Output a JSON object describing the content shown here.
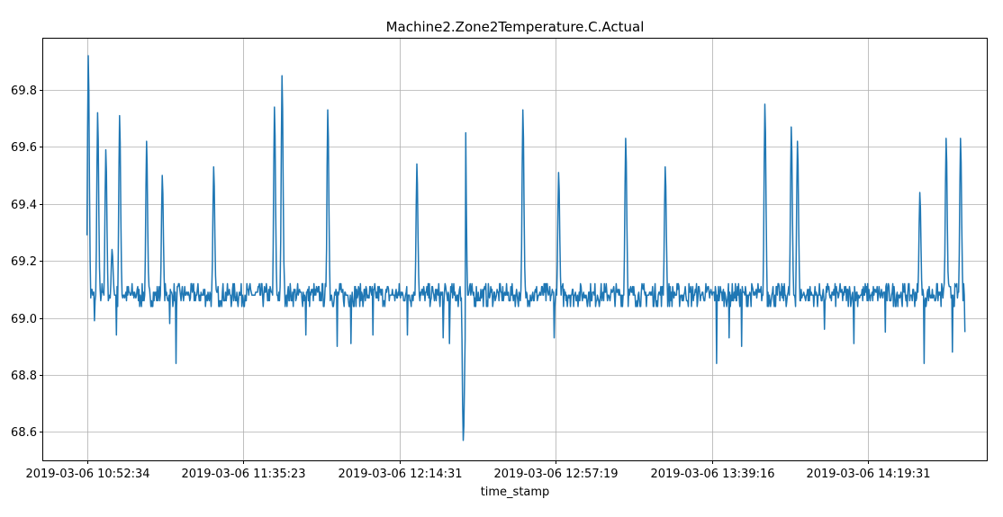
{
  "chart_data": {
    "type": "line",
    "title": "Machine2.Zone2Temperature.C.Actual",
    "xlabel": "time_stamp",
    "ylabel": "",
    "x_tick_labels": [
      "2019-03-06 10:52:34",
      "2019-03-06 11:35:23",
      "2019-03-06 12:14:31",
      "2019-03-06 12:57:19",
      "2019-03-06 13:39:16",
      "2019-03-06 14:19:31"
    ],
    "y_ticks": [
      68.6,
      68.8,
      69.0,
      69.2,
      69.4,
      69.6,
      69.8
    ],
    "ylim": [
      68.5,
      69.98
    ],
    "xlim": [
      -0.28,
      5.76
    ],
    "grid": true,
    "color": "#1f77b4",
    "series_note_baseline": 69.08,
    "spikes": [
      {
        "x": 0.01,
        "y": 69.92
      },
      {
        "x": 0.07,
        "y": 69.72
      },
      {
        "x": 0.12,
        "y": 69.59
      },
      {
        "x": 0.16,
        "y": 69.24
      },
      {
        "x": 0.21,
        "y": 69.71
      },
      {
        "x": 0.38,
        "y": 69.62
      },
      {
        "x": 0.48,
        "y": 69.5
      },
      {
        "x": 0.81,
        "y": 69.53
      },
      {
        "x": 1.2,
        "y": 69.74
      },
      {
        "x": 1.25,
        "y": 69.85
      },
      {
        "x": 1.54,
        "y": 69.73
      },
      {
        "x": 2.11,
        "y": 69.54
      },
      {
        "x": 2.42,
        "y": 69.75
      },
      {
        "x": 2.79,
        "y": 69.73
      },
      {
        "x": 3.02,
        "y": 69.51
      },
      {
        "x": 3.45,
        "y": 69.63
      },
      {
        "x": 3.7,
        "y": 69.53
      },
      {
        "x": 4.34,
        "y": 69.75
      },
      {
        "x": 4.51,
        "y": 69.67
      },
      {
        "x": 4.55,
        "y": 69.62
      },
      {
        "x": 5.33,
        "y": 69.44
      },
      {
        "x": 5.5,
        "y": 69.63
      },
      {
        "x": 5.59,
        "y": 69.63
      }
    ],
    "dips": [
      {
        "x": 0.05,
        "y": 68.99
      },
      {
        "x": 0.19,
        "y": 68.94
      },
      {
        "x": 0.57,
        "y": 68.84
      },
      {
        "x": 0.53,
        "y": 68.98
      },
      {
        "x": 1.4,
        "y": 68.94
      },
      {
        "x": 1.6,
        "y": 68.9
      },
      {
        "x": 1.69,
        "y": 68.91
      },
      {
        "x": 1.83,
        "y": 68.94
      },
      {
        "x": 2.05,
        "y": 68.94
      },
      {
        "x": 2.28,
        "y": 68.93
      },
      {
        "x": 2.32,
        "y": 68.91
      },
      {
        "x": 2.41,
        "y": 68.57
      },
      {
        "x": 2.99,
        "y": 68.93
      },
      {
        "x": 4.03,
        "y": 68.84
      },
      {
        "x": 4.11,
        "y": 68.93
      },
      {
        "x": 4.19,
        "y": 68.9
      },
      {
        "x": 4.72,
        "y": 68.96
      },
      {
        "x": 4.91,
        "y": 68.91
      },
      {
        "x": 5.11,
        "y": 68.95
      },
      {
        "x": 5.36,
        "y": 68.84
      },
      {
        "x": 5.54,
        "y": 68.88
      },
      {
        "x": 5.63,
        "y": 68.95
      }
    ]
  }
}
